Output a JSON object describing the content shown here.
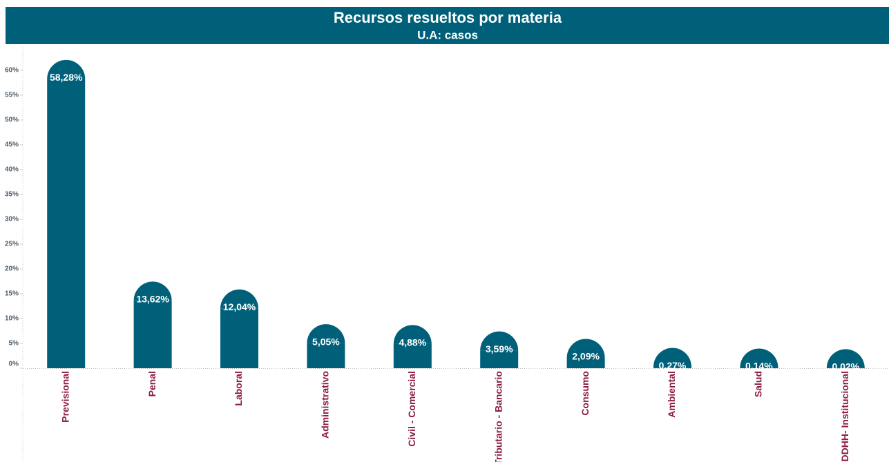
{
  "chart_data": {
    "type": "bar",
    "title": "Recursos resueltos por materia",
    "subtitle": "U.A: casos",
    "categories": [
      "Previsional",
      "Penal",
      "Laboral",
      "Administrativo",
      "Civil - Comercial",
      "Tributario - Bancario",
      "Consumo",
      "Ambiental",
      "Salud",
      "DDHH- Institucional"
    ],
    "values": [
      58.28,
      13.62,
      12.04,
      5.05,
      4.88,
      3.59,
      2.09,
      0.27,
      0.14,
      0.02
    ],
    "value_labels": [
      "58,28%",
      "13,62%",
      "12,04%",
      "5,05%",
      "4,88%",
      "3,59%",
      "2,09%",
      "0,27%",
      "0,14%",
      "0,02%"
    ],
    "color": "#00607a",
    "ylim": [
      0,
      65
    ],
    "yticks": [
      {
        "value": 0,
        "label": "0%"
      },
      {
        "value": 5,
        "label": "5%"
      },
      {
        "value": 10,
        "label": "10%"
      },
      {
        "value": 15,
        "label": "15%"
      },
      {
        "value": 20,
        "label": "20%"
      },
      {
        "value": 25,
        "label": "25%"
      },
      {
        "value": 30,
        "label": "30%"
      },
      {
        "value": 35,
        "label": "35%"
      },
      {
        "value": 40,
        "label": "40%"
      },
      {
        "value": 45,
        "label": "45%"
      },
      {
        "value": 50,
        "label": "50%"
      },
      {
        "value": 55,
        "label": "55%"
      },
      {
        "value": 60,
        "label": "60%"
      }
    ],
    "grid": false
  }
}
